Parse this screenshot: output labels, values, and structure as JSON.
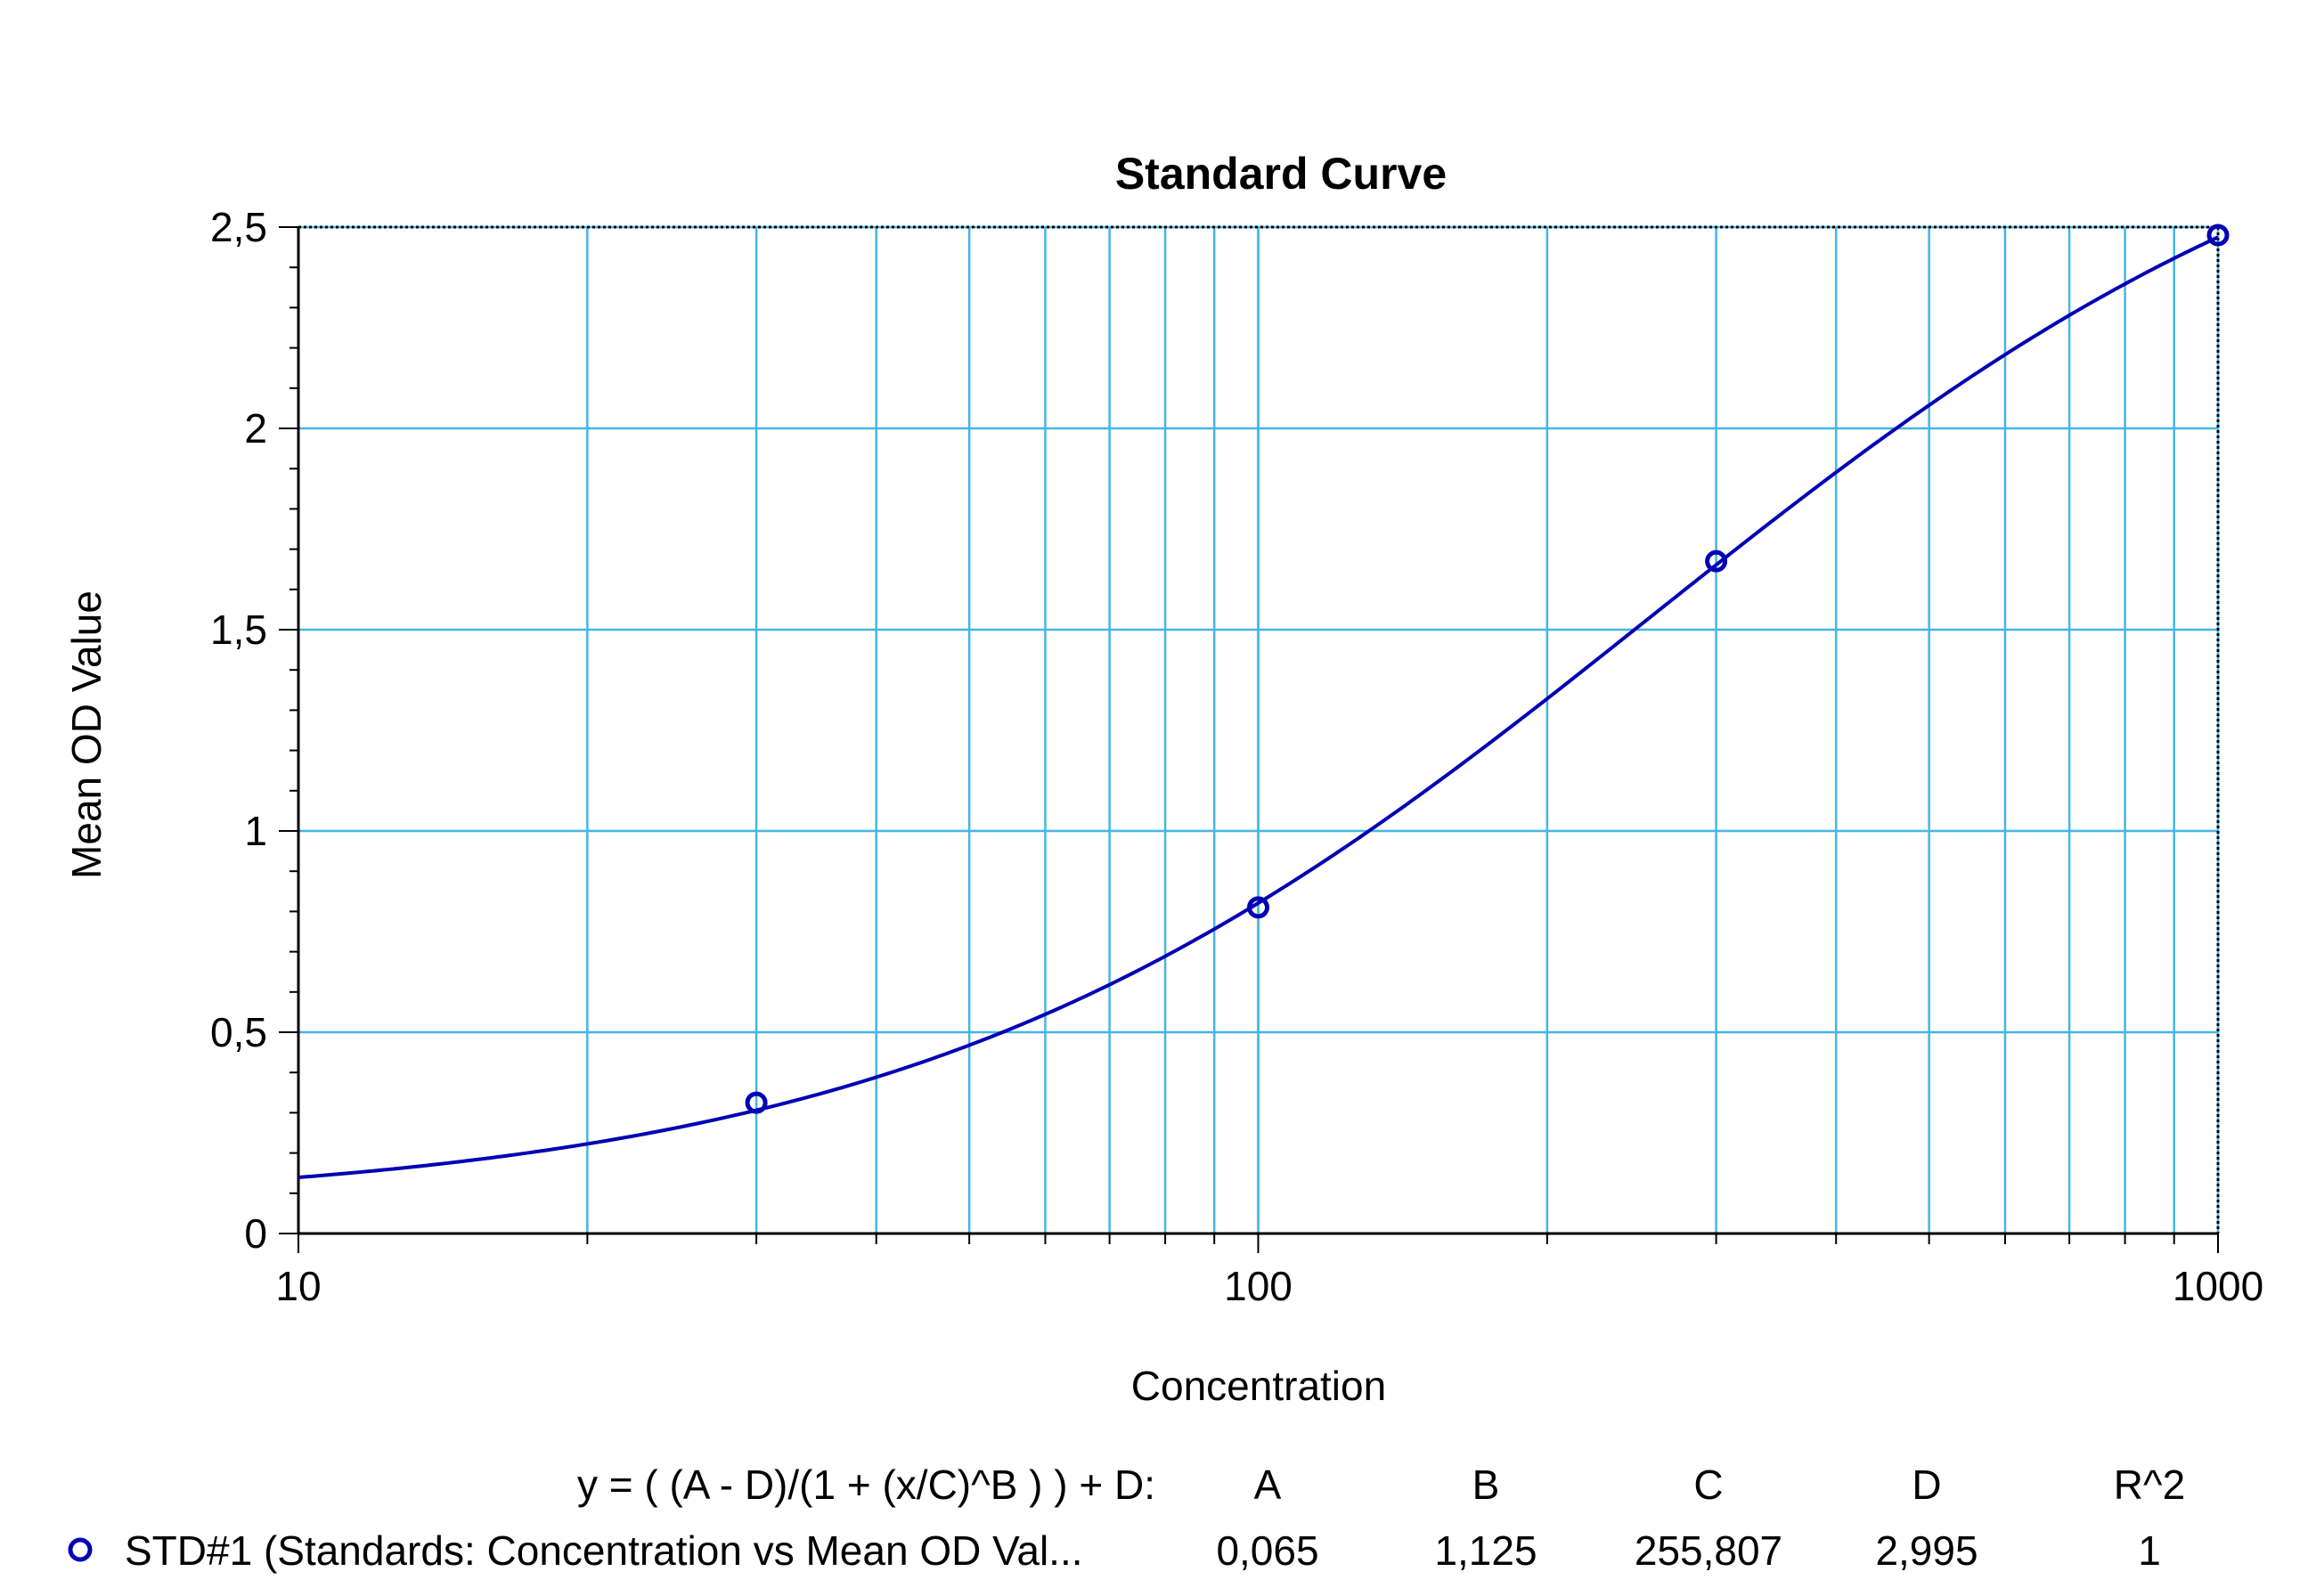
{
  "chart_data": {
    "type": "line",
    "title": "Standard Curve",
    "xlabel": "Concentration",
    "ylabel": "Mean OD Value",
    "x_scale": "log",
    "xlim": [
      10,
      1000
    ],
    "ylim": [
      0,
      2.5
    ],
    "x_ticks": [
      10,
      100,
      1000
    ],
    "x_tick_labels": [
      "10",
      "100",
      "1000"
    ],
    "y_ticks": [
      0,
      0.5,
      1,
      1.5,
      2,
      2.5
    ],
    "y_tick_labels": [
      "0",
      "0,5",
      "1",
      "1,5",
      "2",
      "2,5"
    ],
    "grid": true,
    "series": [
      {
        "name": "STD#1 (Standards: Concentration vs Mean OD Val...",
        "x": [
          30,
          100,
          300,
          1000
        ],
        "y": [
          0.325,
          0.81,
          1.67,
          2.48
        ],
        "marker": "circle"
      }
    ],
    "fit": {
      "equation": "y = ( (A - D)/(1 + (x/C)^B ) ) + D:",
      "A": 0.065,
      "B": 1.125,
      "C": 255.807,
      "D": 2.995
    },
    "legend_table": {
      "columns": [
        "A",
        "B",
        "C",
        "D",
        "R^2"
      ],
      "values": [
        "0,065",
        "1,125",
        "255,807",
        "2,995",
        "1"
      ]
    },
    "legend_placement": "bottom"
  },
  "colors": {
    "series": "#0000b4",
    "grid": "#44b6e4",
    "frame": "#000000"
  }
}
